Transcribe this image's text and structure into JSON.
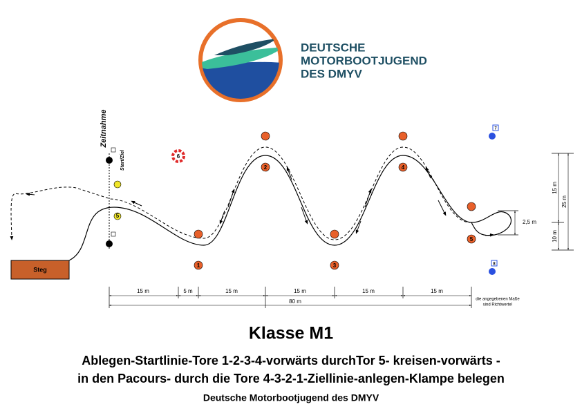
{
  "logo": {
    "lines": [
      "DEUTSCHE",
      "MOTORBOOTJUGEND",
      "DES DMYV"
    ]
  },
  "diagram": {
    "timing": "Zeitnahme",
    "start_finish": "Start/Ziel",
    "dock": "Steg",
    "start_marker": "5",
    "buoys": [
      "1",
      "2",
      "3",
      "4",
      "5",
      "6",
      "7",
      "8"
    ],
    "dimensions": {
      "segments": [
        "15 m",
        "5 m",
        "15 m",
        "15 m",
        "15 m",
        "15 m"
      ],
      "total": "80 m",
      "note": [
        "die angegebenen Maße",
        "sind Richtwerte!"
      ],
      "loop": "2,5 m",
      "side": [
        "15 m",
        "25 m",
        "10 m"
      ]
    }
  },
  "title": "Klasse M1",
  "description": [
    "Ablegen-Startlinie-Tore 1-2-3-4-vorwärts durchTor 5- kreisen-vorwärts -",
    "in den Pacours- durch die Tore 4-3-2-1-Ziellinie-anlegen-Klampe belegen"
  ],
  "footer": "Deutsche Motorbootjugend des DMYV"
}
